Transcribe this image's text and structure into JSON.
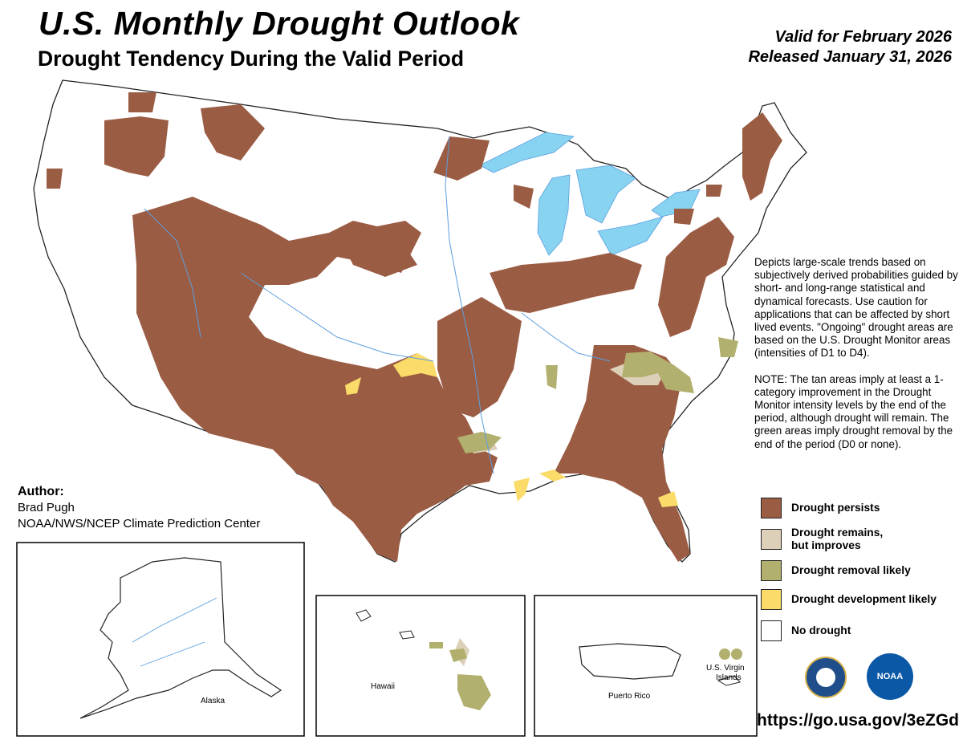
{
  "title": "U.S. Monthly Drought Outlook",
  "subtitle": "Drought Tendency During the Valid Period",
  "valid_for": "Valid for February 2026",
  "released": "Released January 31, 2026",
  "description": "Depicts large-scale trends based on subjectively derived probabilities guided by short- and long-range statistical and dynamical forecasts. Use caution for applications that can be affected by short lived events. \"Ongoing\" drought areas are based on the U.S. Drought Monitor areas (intensities of D1 to D4).",
  "note": "NOTE: The tan areas imply at least a 1-category improvement in the Drought Monitor intensity levels by the end of the period, although drought will remain. The green areas imply drought removal by the end of the period (D0 or none).",
  "legend": [
    {
      "label": "Drought persists",
      "color": "#9b5c44"
    },
    {
      "label_line1": "Drought remains,",
      "label_line2": "but improves",
      "color": "#ddd0b8"
    },
    {
      "label": "Drought removal likely",
      "color": "#b2b06e"
    },
    {
      "label": "Drought development likely",
      "color": "#fbdc6a"
    },
    {
      "label": "No drought",
      "color": "#ffffff"
    }
  ],
  "author": {
    "heading": "Author:",
    "name": "Brad Pugh",
    "organization": "NOAA/NWS/NCEP Climate Prediction Center"
  },
  "insets": {
    "alaska": "Alaska",
    "hawaii": "Hawaii",
    "puerto_rico": "Puerto Rico",
    "virgin_islands_line1": "U.S. Virgin",
    "virgin_islands_line2": "Islands"
  },
  "logos": {
    "commerce_seal": "commerce-seal-icon",
    "noaa": "NOAA"
  },
  "url": "https://go.usa.gov/3eZGd",
  "colors": {
    "persists": "#9b5c44",
    "improves": "#ddd0b8",
    "removal": "#b2b06e",
    "development": "#fbdc6a",
    "water": "#87d3f0",
    "rivers": "#5b9fe0"
  }
}
